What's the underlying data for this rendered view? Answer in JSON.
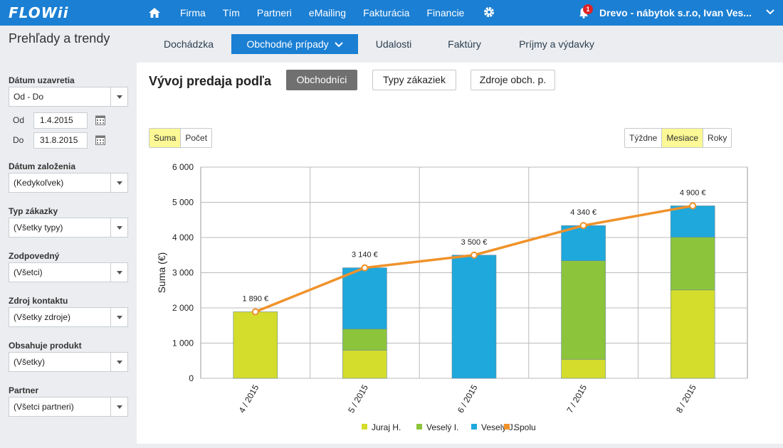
{
  "app": {
    "logo": "FLOWii"
  },
  "topnav": {
    "items": [
      "Firma",
      "Tím",
      "Partneri",
      "eMailing",
      "Fakturácia",
      "Financie"
    ],
    "notifications": "1",
    "company": "Drevo - nábytok s.r.o, Ivan Ves..."
  },
  "page": {
    "title": "Prehľady a trendy"
  },
  "tabs": [
    {
      "label": "Dochádzka",
      "active": false
    },
    {
      "label": "Obchodné prípady",
      "active": true
    },
    {
      "label": "Udalosti",
      "active": false
    },
    {
      "label": "Faktúry",
      "active": false
    },
    {
      "label": "Príjmy a výdavky",
      "active": false
    }
  ],
  "filters": {
    "closing_date": {
      "label": "Dátum uzavretia",
      "value": "Od - Do"
    },
    "from": {
      "label": "Od",
      "value": "1.4.2015"
    },
    "to": {
      "label": "Do",
      "value": "31.8.2015"
    },
    "created_date": {
      "label": "Dátum založenia",
      "value": "(Kedykoľvek)"
    },
    "customer_type": {
      "label": "Typ zákazky",
      "value": "(Všetky typy)"
    },
    "responsible": {
      "label": "Zodpovedný",
      "value": "(Všetci)"
    },
    "contact_source": {
      "label": "Zdroj kontaktu",
      "value": "(Všetky zdroje)"
    },
    "product": {
      "label": "Obsahuje produkt",
      "value": "(Všetky)"
    },
    "partner": {
      "label": "Partner",
      "value": "(Všetci partneri)"
    }
  },
  "section": {
    "title": "Vývoj predaja podľa",
    "group_buttons": [
      {
        "label": "Obchodníci",
        "active": true
      },
      {
        "label": "Typy zákaziek",
        "active": false
      },
      {
        "label": "Zdroje obch. p.",
        "active": false
      }
    ],
    "metric_toggle": [
      {
        "label": "Suma",
        "active": true
      },
      {
        "label": "Počet",
        "active": false
      }
    ],
    "period_toggle": [
      {
        "label": "Týždne",
        "active": false
      },
      {
        "label": "Mesiace",
        "active": true
      },
      {
        "label": "Roky",
        "active": false
      }
    ]
  },
  "chart_data": {
    "type": "bar",
    "stacked": true,
    "categories": [
      "4 / 2015",
      "5 / 2015",
      "6 / 2015",
      "7 / 2015",
      "8 / 2015"
    ],
    "ylabel": "Suma (€)",
    "ylim": [
      0,
      6000
    ],
    "yticks": [
      "0",
      "1 000",
      "2 000",
      "3 000",
      "4 000",
      "5 000",
      "6 000"
    ],
    "ytick_values": [
      0,
      1000,
      2000,
      3000,
      4000,
      5000,
      6000
    ],
    "grid": true,
    "legend": "bottom",
    "series": [
      {
        "name": "Juraj H.",
        "color": "#d4dc2c",
        "values": [
          1890,
          800,
          0,
          540,
          2510
        ]
      },
      {
        "name": "Veselý I.",
        "color": "#8cc43c",
        "values": [
          0,
          600,
          0,
          2800,
          1500
        ]
      },
      {
        "name": "Veselý J.",
        "color": "#1fa8dc",
        "values": [
          0,
          1740,
          3500,
          1000,
          890
        ]
      }
    ],
    "line": {
      "name": "Spolu",
      "color": "#f0922a",
      "values": [
        1890,
        3140,
        3500,
        4340,
        4900
      ]
    },
    "data_labels": [
      "1 890 €",
      "3 140 €",
      "3 500 €",
      "4 340 €",
      "4 900 €"
    ]
  }
}
